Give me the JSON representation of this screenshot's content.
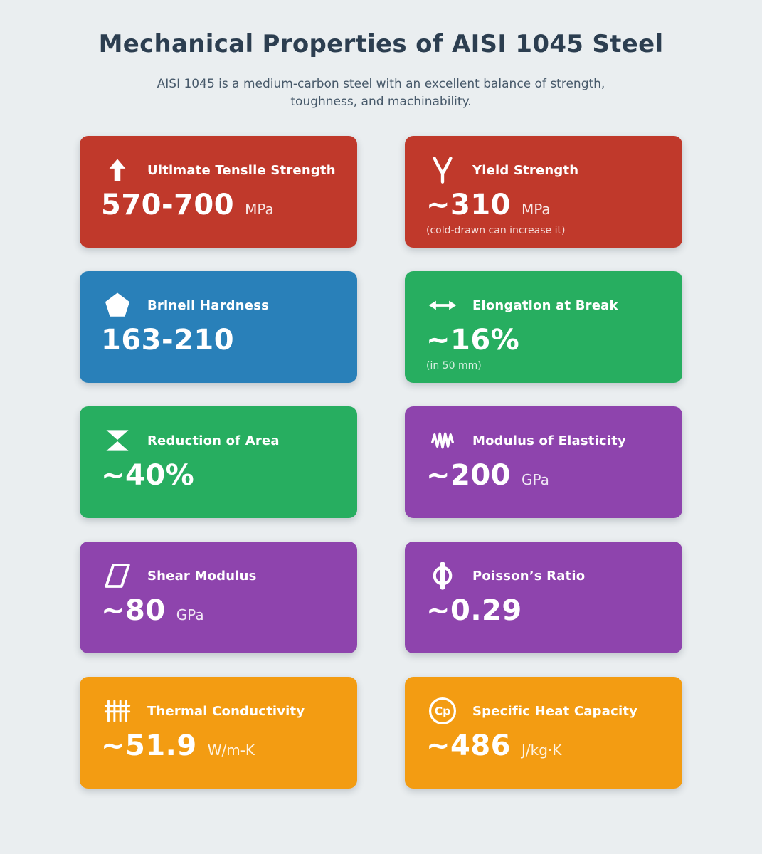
{
  "page": {
    "title": "Mechanical Properties of AISI 1045 Steel",
    "subtitle": "AISI 1045 is a medium-carbon steel with an excellent balance of strength, toughness, and machinability.",
    "background_color": "#eaeef0",
    "title_color": "#2c3e50",
    "subtitle_color": "#47596a"
  },
  "colors": {
    "red": "#c0392b",
    "blue": "#2980b9",
    "green": "#27ae60",
    "purple": "#8e44ad",
    "orange": "#f39c12"
  },
  "cards": [
    {
      "icon": "arrow-up-icon",
      "title": "Ultimate Tensile Strength",
      "value": "570-700",
      "unit": "MPa",
      "note": "",
      "color": "#c0392b"
    },
    {
      "icon": "yield-fork-icon",
      "title": "Yield Strength",
      "value": "~310",
      "unit": "MPa",
      "note": "(cold-drawn can increase it)",
      "color": "#c0392b"
    },
    {
      "icon": "pentagon-icon",
      "title": "Brinell Hardness",
      "value": "163-210",
      "unit": "",
      "note": "",
      "color": "#2980b9"
    },
    {
      "icon": "arrows-horizontal-icon",
      "title": "Elongation at Break",
      "value": "~16%",
      "unit": "",
      "note": "(in 50 mm)",
      "color": "#27ae60"
    },
    {
      "icon": "hourglass-icon",
      "title": "Reduction of Area",
      "value": "~40%",
      "unit": "",
      "note": "",
      "color": "#27ae60"
    },
    {
      "icon": "spring-icon",
      "title": "Modulus of Elasticity",
      "value": "~200",
      "unit": "GPa",
      "note": "",
      "color": "#8e44ad"
    },
    {
      "icon": "parallelogram-icon",
      "title": "Shear Modulus",
      "value": "~80",
      "unit": "GPa",
      "note": "",
      "color": "#8e44ad"
    },
    {
      "icon": "phi-icon",
      "title": "Poisson’s Ratio",
      "value": "~0.29",
      "unit": "",
      "note": "",
      "color": "#8e44ad"
    },
    {
      "icon": "radiator-icon",
      "title": "Thermal Conductivity",
      "value": "~51.9",
      "unit": "W/m-K",
      "note": "",
      "color": "#f39c12"
    },
    {
      "icon": "cp-circle-icon",
      "title": "Specific Heat Capacity",
      "value": "~486",
      "unit": "J/kg·K",
      "note": "",
      "icon_label": "Cp",
      "color": "#f39c12"
    }
  ]
}
